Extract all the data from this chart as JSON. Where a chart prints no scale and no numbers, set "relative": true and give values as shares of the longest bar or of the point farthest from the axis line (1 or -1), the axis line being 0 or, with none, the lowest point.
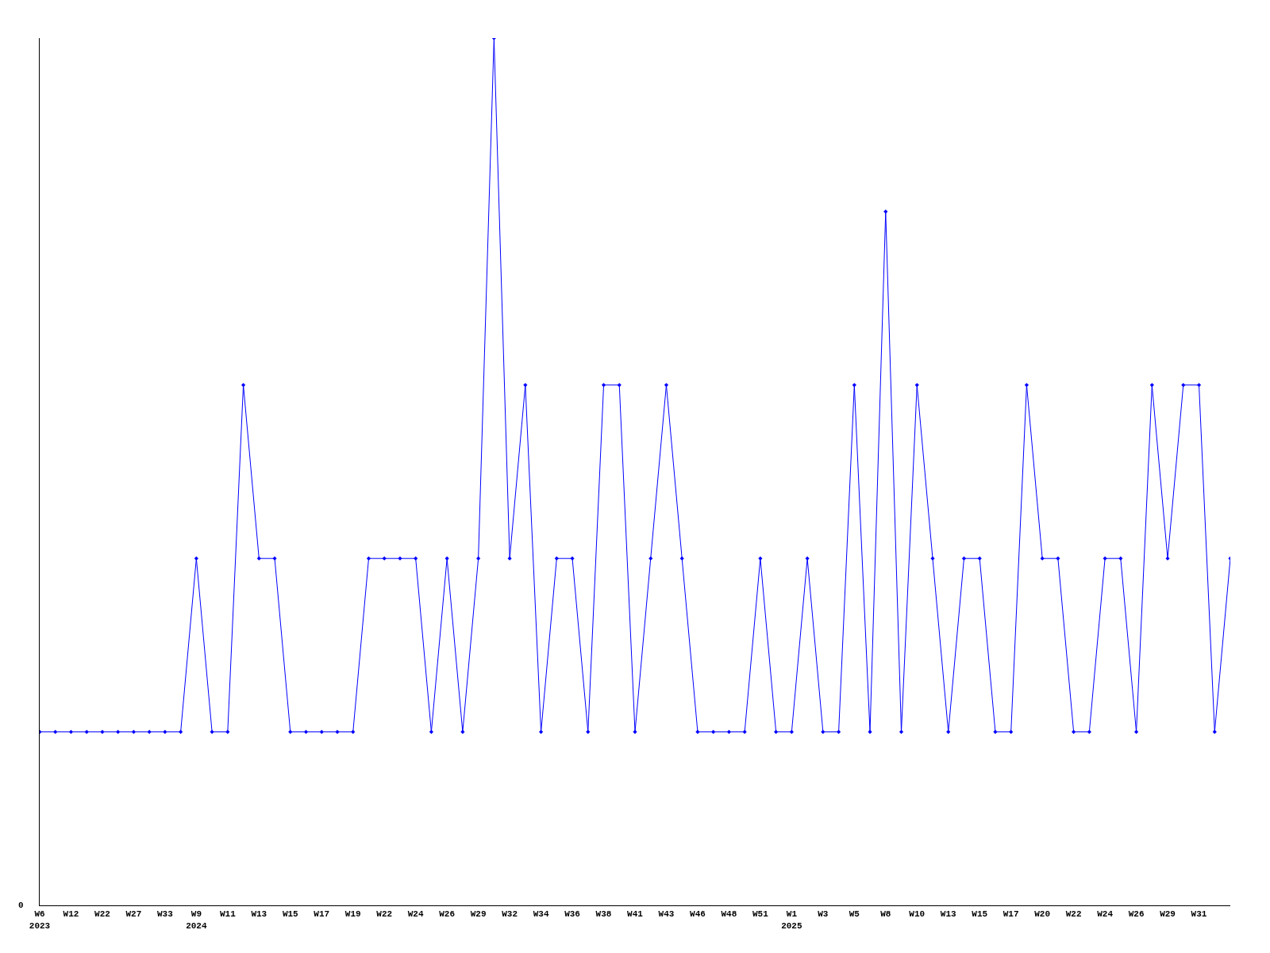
{
  "chart_data": {
    "type": "line",
    "relative": true,
    "marker": "diamond",
    "grid": false,
    "categories": [
      "W6\n2023",
      null,
      "W12",
      null,
      "W22",
      null,
      "W27",
      null,
      "W33",
      null,
      "W9\n2024",
      null,
      "W11",
      null,
      "W13",
      null,
      "W15",
      null,
      "W17",
      null,
      "W19",
      null,
      "W22",
      null,
      "W24",
      null,
      "W26",
      null,
      "W29",
      null,
      "W32",
      null,
      "W34",
      null,
      "W36",
      null,
      "W38",
      null,
      "W41",
      null,
      "W43",
      null,
      "W46",
      null,
      "W48",
      null,
      "W51",
      null,
      "W1\n2025",
      null,
      "W3",
      null,
      "W5",
      null,
      "W8",
      null,
      "W10",
      null,
      "W13",
      null,
      "W15",
      null,
      "W17",
      null,
      "W20",
      null,
      "W22",
      null,
      "W24",
      null,
      "W26",
      null,
      "W29",
      null,
      "W31",
      null,
      null
    ],
    "series": [
      {
        "color": "#0000ff",
        "values": [
          0.2,
          0.2,
          0.2,
          0.2,
          0.2,
          0.2,
          0.2,
          0.2,
          0.2,
          0.2,
          0.4,
          0.2,
          0.2,
          0.6,
          0.4,
          0.4,
          0.2,
          0.2,
          0.2,
          0.2,
          0.2,
          0.4,
          0.4,
          0.4,
          0.4,
          0.2,
          0.4,
          0.2,
          0.4,
          1,
          0.4,
          0.6,
          0.2,
          0.4,
          0.4,
          0.2,
          0.6,
          0.6,
          0.2,
          0.4,
          0.6,
          0.4,
          0.2,
          0.2,
          0.2,
          0.2,
          0.4,
          0.2,
          0.2,
          0.4,
          0.2,
          0.2,
          0.6,
          0.2,
          0.8,
          0.2,
          0.6,
          0.4,
          0.2,
          0.4,
          0.4,
          0.2,
          0.2,
          0.6,
          0.4,
          0.4,
          0.2,
          0.2,
          0.4,
          0.4,
          0.2,
          0.6,
          0.4,
          0.6,
          0.6,
          0.2,
          0.4
        ]
      }
    ],
    "annotations": [
      "0"
    ]
  }
}
